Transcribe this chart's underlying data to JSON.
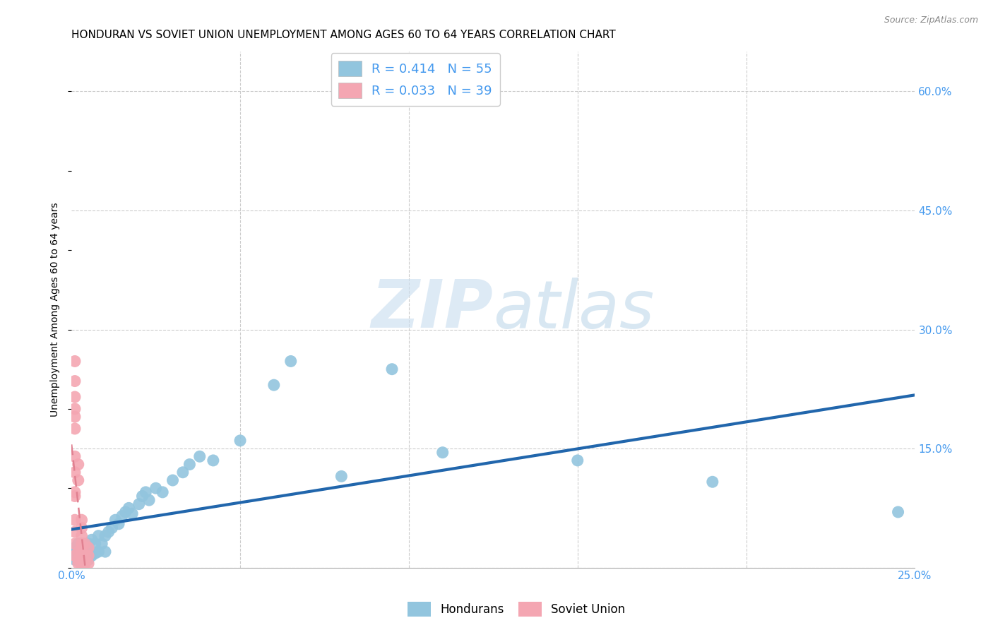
{
  "title": "HONDURAN VS SOVIET UNION UNEMPLOYMENT AMONG AGES 60 TO 64 YEARS CORRELATION CHART",
  "source": "Source: ZipAtlas.com",
  "ylabel": "Unemployment Among Ages 60 to 64 years",
  "xlim": [
    0.0,
    0.25
  ],
  "ylim": [
    0.0,
    0.65
  ],
  "x_ticks": [
    0.0,
    0.05,
    0.1,
    0.15,
    0.2,
    0.25
  ],
  "y_ticks_right": [
    0.0,
    0.15,
    0.3,
    0.45,
    0.6
  ],
  "x_tick_labels": [
    "0.0%",
    "",
    "",
    "",
    "",
    "25.0%"
  ],
  "y_tick_labels_right": [
    "",
    "15.0%",
    "30.0%",
    "45.0%",
    "60.0%"
  ],
  "hondurans_color": "#92c5de",
  "soviet_color": "#f4a6b2",
  "hondurans_line_color": "#2166ac",
  "soviet_line_color": "#e08090",
  "R_hondurans": 0.414,
  "N_hondurans": 55,
  "R_soviet": 0.033,
  "N_soviet": 39,
  "watermark": "ZIPatlas",
  "background_color": "#ffffff",
  "grid_color": "#cccccc",
  "hondurans_x": [
    0.001,
    0.001,
    0.001,
    0.002,
    0.002,
    0.002,
    0.002,
    0.003,
    0.003,
    0.003,
    0.003,
    0.003,
    0.004,
    0.004,
    0.004,
    0.005,
    0.005,
    0.005,
    0.006,
    0.006,
    0.007,
    0.007,
    0.008,
    0.008,
    0.009,
    0.01,
    0.01,
    0.011,
    0.012,
    0.013,
    0.014,
    0.015,
    0.016,
    0.017,
    0.018,
    0.02,
    0.021,
    0.022,
    0.023,
    0.025,
    0.027,
    0.03,
    0.033,
    0.035,
    0.038,
    0.042,
    0.05,
    0.06,
    0.065,
    0.08,
    0.095,
    0.11,
    0.15,
    0.19,
    0.245
  ],
  "hondurans_y": [
    0.025,
    0.02,
    0.01,
    0.03,
    0.02,
    0.015,
    0.008,
    0.03,
    0.025,
    0.018,
    0.012,
    0.006,
    0.028,
    0.02,
    0.012,
    0.03,
    0.02,
    0.01,
    0.035,
    0.015,
    0.03,
    0.018,
    0.04,
    0.02,
    0.03,
    0.04,
    0.02,
    0.045,
    0.05,
    0.06,
    0.055,
    0.065,
    0.07,
    0.075,
    0.068,
    0.08,
    0.09,
    0.095,
    0.085,
    0.1,
    0.095,
    0.11,
    0.12,
    0.13,
    0.14,
    0.135,
    0.16,
    0.23,
    0.26,
    0.115,
    0.25,
    0.145,
    0.135,
    0.108,
    0.07
  ],
  "soviet_x": [
    0.001,
    0.001,
    0.001,
    0.001,
    0.001,
    0.001,
    0.001,
    0.001,
    0.001,
    0.001,
    0.001,
    0.001,
    0.001,
    0.001,
    0.002,
    0.002,
    0.002,
    0.002,
    0.002,
    0.003,
    0.003,
    0.003,
    0.003,
    0.003,
    0.003,
    0.003,
    0.003,
    0.003,
    0.003,
    0.003,
    0.003,
    0.003,
    0.003,
    0.004,
    0.004,
    0.004,
    0.005,
    0.005,
    0.005
  ],
  "soviet_y": [
    0.26,
    0.235,
    0.215,
    0.2,
    0.19,
    0.175,
    0.14,
    0.12,
    0.095,
    0.09,
    0.06,
    0.045,
    0.03,
    0.015,
    0.13,
    0.11,
    0.02,
    0.01,
    0.005,
    0.06,
    0.05,
    0.04,
    0.03,
    0.025,
    0.02,
    0.015,
    0.01,
    0.008,
    0.005,
    0.003,
    0.002,
    0.001,
    0.0,
    0.03,
    0.015,
    0.005,
    0.025,
    0.015,
    0.005
  ],
  "legend_label_blue": "R = 0.414   N = 55",
  "legend_label_pink": "R = 0.033   N = 39",
  "title_fontsize": 11,
  "axis_label_fontsize": 10,
  "tick_fontsize": 11,
  "legend_fontsize": 13
}
